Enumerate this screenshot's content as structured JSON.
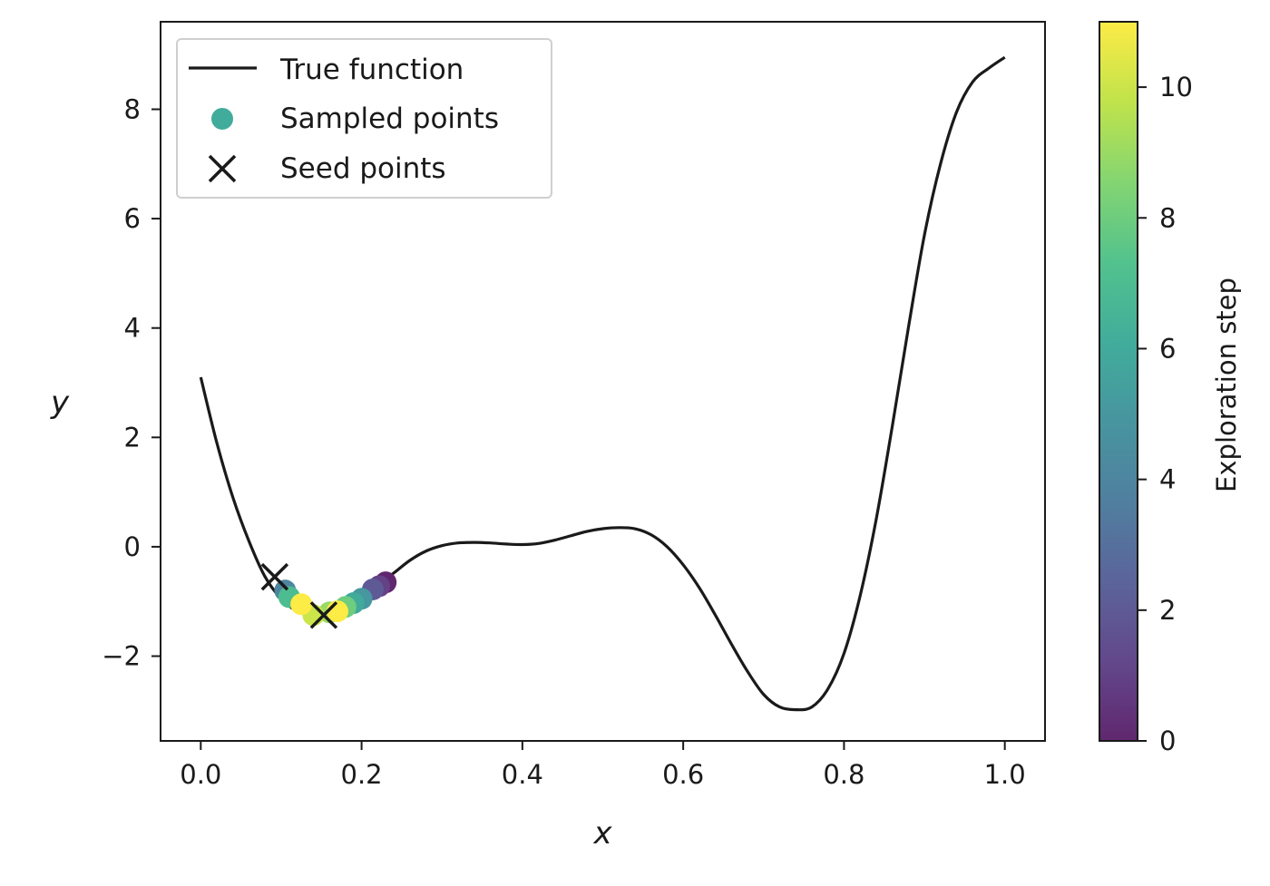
{
  "chart_data": {
    "type": "line",
    "xlabel": "x",
    "ylabel": "y",
    "xlim": [
      -0.05,
      1.05
    ],
    "ylim": [
      -3.55,
      9.6
    ],
    "xticks": [
      0.0,
      0.2,
      0.4,
      0.6,
      0.8,
      1.0
    ],
    "xtick_labels": [
      "0.0",
      "0.2",
      "0.4",
      "0.6",
      "0.8",
      "1.0"
    ],
    "yticks": [
      -2,
      0,
      2,
      4,
      6,
      8
    ],
    "ytick_labels": [
      "−2",
      "0",
      "2",
      "4",
      "6",
      "8"
    ],
    "grid": false,
    "legend_position": "top-left",
    "true_function": {
      "name": "True function",
      "color": "#1a1a1a",
      "x": [
        0.0,
        0.02,
        0.04,
        0.06,
        0.08,
        0.1,
        0.12,
        0.14,
        0.16,
        0.18,
        0.2,
        0.22,
        0.24,
        0.26,
        0.28,
        0.3,
        0.32,
        0.34,
        0.36,
        0.38,
        0.4,
        0.42,
        0.44,
        0.46,
        0.48,
        0.5,
        0.52,
        0.54,
        0.56,
        0.58,
        0.6,
        0.62,
        0.64,
        0.66,
        0.68,
        0.7,
        0.72,
        0.74,
        0.76,
        0.78,
        0.8,
        0.82,
        0.84,
        0.86,
        0.88,
        0.9,
        0.92,
        0.94,
        0.96,
        0.98,
        1.0
      ],
      "y": [
        3.1,
        1.9,
        0.9,
        0.1,
        -0.55,
        -0.95,
        -1.18,
        -1.25,
        -1.2,
        -1.08,
        -0.9,
        -0.7,
        -0.48,
        -0.25,
        -0.08,
        0.02,
        0.07,
        0.08,
        0.07,
        0.05,
        0.04,
        0.06,
        0.12,
        0.2,
        0.28,
        0.33,
        0.35,
        0.33,
        0.22,
        0.0,
        -0.33,
        -0.75,
        -1.25,
        -1.78,
        -2.28,
        -2.7,
        -2.93,
        -2.98,
        -2.93,
        -2.6,
        -1.95,
        -0.9,
        0.5,
        2.2,
        4.0,
        5.7,
        7.0,
        7.95,
        8.5,
        8.75,
        8.95
      ]
    },
    "sampled_points": {
      "name": "Sampled points",
      "color": "#45968a",
      "x": [
        0.23,
        0.222,
        0.214,
        0.105,
        0.2,
        0.19,
        0.11,
        0.18,
        0.16,
        0.14,
        0.125,
        0.17
      ],
      "y": [
        -0.65,
        -0.72,
        -0.78,
        -0.8,
        -0.95,
        -1.03,
        -0.92,
        -1.1,
        -1.2,
        -1.25,
        -1.05,
        -1.18
      ],
      "step": [
        0,
        1,
        2,
        4,
        5,
        6,
        7,
        8,
        9,
        10,
        11,
        11
      ]
    },
    "seed_points": {
      "name": "Seed points",
      "color": "#1a1a1a",
      "x": [
        0.092,
        0.153
      ],
      "y": [
        -0.55,
        -1.25
      ]
    },
    "colorbar": {
      "label": "Exploration step",
      "min": 0,
      "max": 11,
      "ticks": [
        0,
        2,
        4,
        6,
        8,
        10
      ],
      "tick_labels": [
        "0",
        "2",
        "4",
        "6",
        "8",
        "10"
      ],
      "colormap": [
        "#440154",
        "#482878",
        "#3e4989",
        "#31688e",
        "#26828e",
        "#1f9e89",
        "#35b779",
        "#6ece58",
        "#b5de2b",
        "#fde725"
      ]
    },
    "legend": [
      "True function",
      "Sampled points",
      "Seed points"
    ]
  }
}
